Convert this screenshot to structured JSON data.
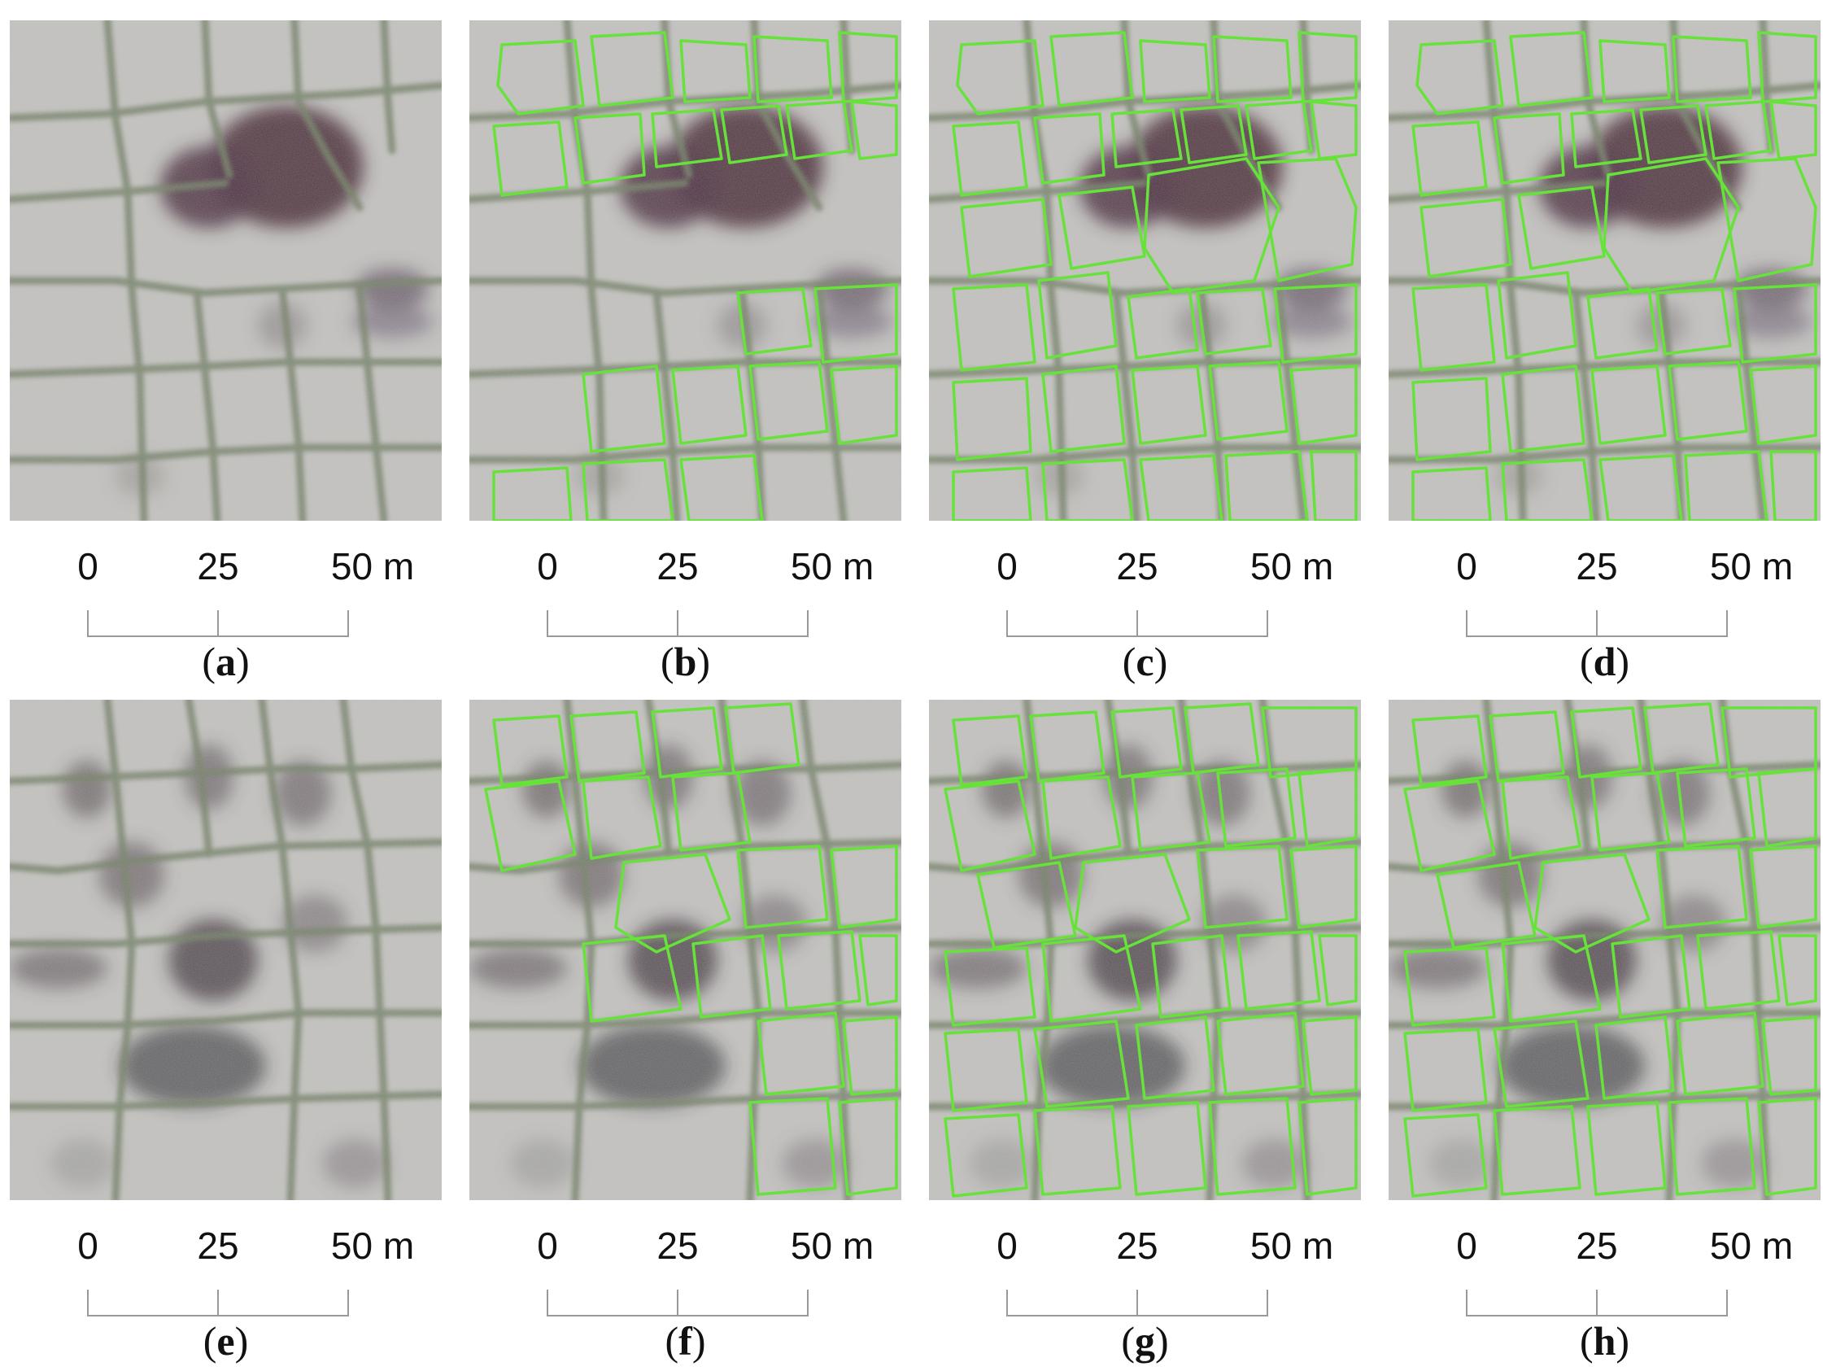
{
  "scale": {
    "ticks": [
      "0",
      "25",
      "50 m"
    ]
  },
  "outline_color": "#66e23a",
  "panels": [
    {
      "id": "a",
      "caption_open": "(",
      "caption_letter": "a",
      "caption_close": ")",
      "scene": "top",
      "outlines": "none"
    },
    {
      "id": "b",
      "caption_open": "(",
      "caption_letter": "b",
      "caption_close": ")",
      "scene": "top",
      "outlines": "partial"
    },
    {
      "id": "c",
      "caption_open": "(",
      "caption_letter": "c",
      "caption_close": ")",
      "scene": "top",
      "outlines": "full"
    },
    {
      "id": "d",
      "caption_open": "(",
      "caption_letter": "d",
      "caption_close": ")",
      "scene": "top",
      "outlines": "full"
    },
    {
      "id": "e",
      "caption_open": "(",
      "caption_letter": "e",
      "caption_close": ")",
      "scene": "bottom",
      "outlines": "none"
    },
    {
      "id": "f",
      "caption_open": "(",
      "caption_letter": "f",
      "caption_close": ")",
      "scene": "bottom",
      "outlines": "partial"
    },
    {
      "id": "g",
      "caption_open": "(",
      "caption_letter": "g",
      "caption_close": ")",
      "scene": "bottom",
      "outlines": "full"
    },
    {
      "id": "h",
      "caption_open": "(",
      "caption_letter": "h",
      "caption_close": ")",
      "scene": "bottom",
      "outlines": "full"
    }
  ]
}
